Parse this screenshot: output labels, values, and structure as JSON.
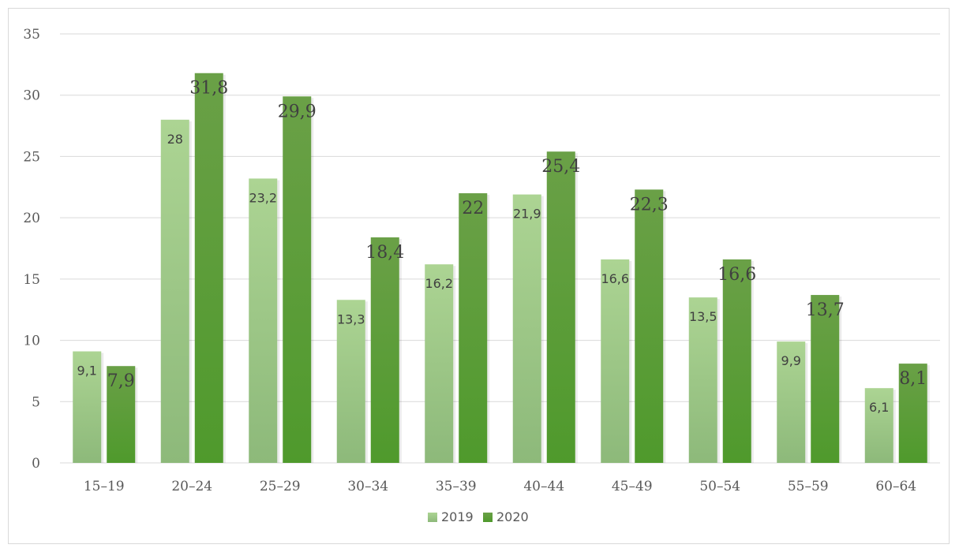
{
  "chart_data": {
    "type": "bar",
    "categories": [
      "15–19",
      "20–24",
      "25–29",
      "30–34",
      "35–39",
      "40–44",
      "45–49",
      "50–54",
      "55–59",
      "60–64"
    ],
    "series": [
      {
        "name": "2019",
        "values": [
          9.1,
          28,
          23.2,
          13.3,
          16.2,
          21.9,
          16.6,
          13.5,
          9.9,
          6.1
        ],
        "labels": [
          "9,1",
          "28",
          "23,2",
          "13,3",
          "16,2",
          "21,9",
          "16,6",
          "13,5",
          "9,9",
          "6,1"
        ],
        "color": "#a9d18e"
      },
      {
        "name": "2020",
        "values": [
          7.9,
          31.8,
          29.9,
          18.4,
          22,
          25.4,
          22.3,
          16.6,
          13.7,
          8.1
        ],
        "labels": [
          "7,9",
          "31,8",
          "29,9",
          "18,4",
          "22",
          "25,4",
          "22,3",
          "16,6",
          "13,7",
          "8,1"
        ],
        "color": "#5f9e3b"
      }
    ],
    "ylim": [
      0,
      35
    ],
    "yticks": [
      0,
      5,
      10,
      15,
      20,
      25,
      30,
      35
    ],
    "grid": true,
    "legend": "bottom-center"
  }
}
